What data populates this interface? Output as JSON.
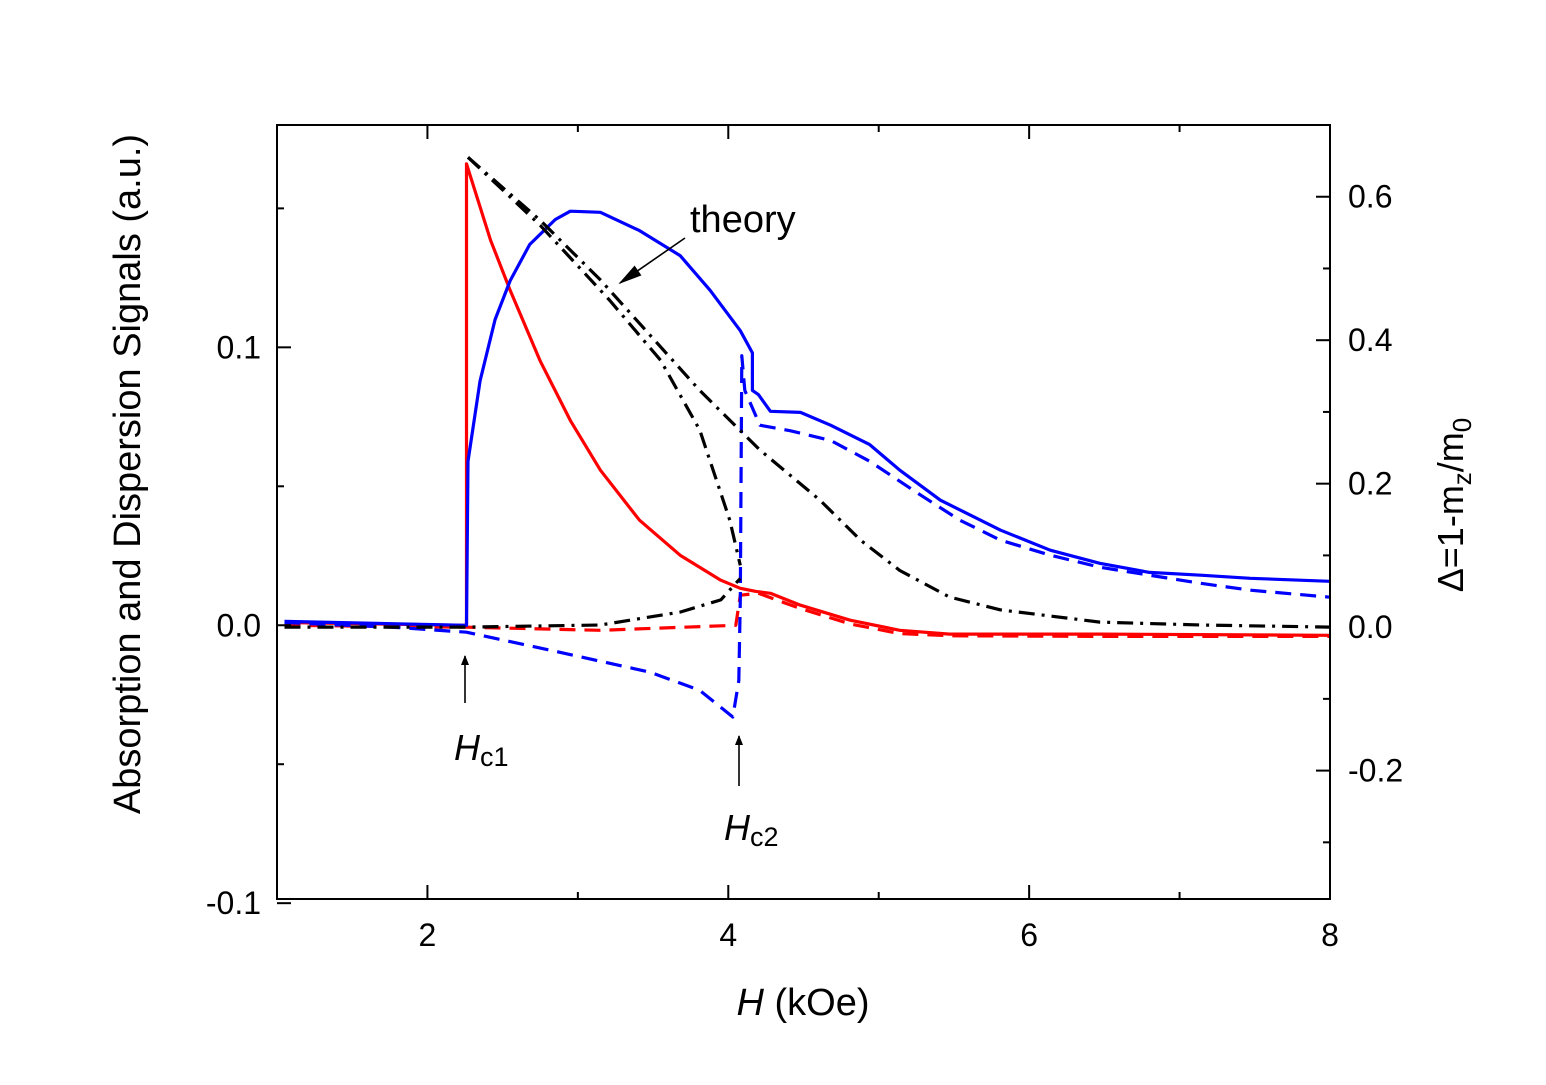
{
  "chart_data": {
    "type": "line",
    "xlabel": {
      "italic": "H",
      "rest": " (kOe)"
    },
    "ylabel_left": "Absorption and Dispersion Signals (a.u.)",
    "ylabel_right": {
      "main": "Δ=1-m",
      "sub1": "z",
      "mid": "/m",
      "sub2": "0"
    },
    "xlim": [
      1,
      8
    ],
    "ylim_left": [
      -0.0985,
      0.18
    ],
    "ylim_right": [
      -0.379,
      0.7
    ],
    "x_ticks": [
      2,
      4,
      6,
      8
    ],
    "x_tick_labels": [
      "2",
      "4",
      "6",
      "8"
    ],
    "x_minor_ticks": [
      1,
      3,
      5,
      7
    ],
    "y_left_ticks": [
      -0.1,
      0.0,
      0.1
    ],
    "y_left_tick_labels": [
      "-0.1",
      "0.0",
      "0.1"
    ],
    "y_left_minor_ticks": [
      -0.05,
      0.05,
      0.15
    ],
    "y_right_ticks": [
      -0.2,
      0.0,
      0.2,
      0.4,
      0.6
    ],
    "y_right_tick_labels": [
      "-0.2",
      "0.0",
      "0.2",
      "0.4",
      "0.6"
    ],
    "y_right_minor_ticks": [
      -0.3,
      -0.1,
      0.1,
      0.3,
      0.5
    ],
    "grid": false,
    "series": [
      {
        "name": "absorption-measured",
        "axis": "left",
        "color": "#ff0000",
        "style": "solid",
        "x": [
          1.05,
          2.26,
          2.26,
          2.42,
          2.55,
          2.75,
          2.95,
          3.15,
          3.41,
          3.68,
          3.95,
          4.08,
          4.18,
          4.28,
          4.48,
          4.81,
          5.14,
          5.47,
          6.47,
          8.0
        ],
        "y": [
          0.001,
          0.0,
          0.166,
          0.1385,
          0.1205,
          0.095,
          0.0737,
          0.0558,
          0.0378,
          0.0252,
          0.0162,
          0.0133,
          0.0122,
          0.0115,
          0.0072,
          0.0018,
          -0.0018,
          -0.0032,
          -0.0032,
          -0.0036
        ]
      },
      {
        "name": "absorption-dashed",
        "axis": "left",
        "color": "#ff0000",
        "style": "dashed",
        "x": [
          1.05,
          2.26,
          3.15,
          4.05,
          4.08,
          4.2,
          4.48,
          4.81,
          5.14,
          5.5,
          6.5,
          8.0
        ],
        "y": [
          0.0,
          -0.0007,
          -0.0018,
          0.0,
          0.0108,
          0.0115,
          0.006,
          0.0005,
          -0.003,
          -0.0038,
          -0.004,
          -0.004
        ]
      },
      {
        "name": "dispersion-measured",
        "axis": "left",
        "color": "#0000ff",
        "style": "solid",
        "x": [
          1.05,
          2.26,
          2.27,
          2.35,
          2.45,
          2.55,
          2.68,
          2.85,
          2.95,
          3.15,
          3.41,
          3.68,
          3.88,
          4.08,
          4.16,
          4.16,
          4.2,
          4.28,
          4.48,
          4.68,
          4.94,
          5.14,
          5.41,
          5.61,
          5.81,
          6.14,
          6.47,
          6.8,
          7.14,
          7.47,
          8.0
        ],
        "y": [
          0.0014,
          0.0,
          0.059,
          0.088,
          0.11,
          0.124,
          0.137,
          0.146,
          0.149,
          0.1486,
          0.142,
          0.133,
          0.1205,
          0.106,
          0.098,
          0.0845,
          0.083,
          0.077,
          0.0766,
          0.072,
          0.065,
          0.0558,
          0.045,
          0.0396,
          0.0342,
          0.027,
          0.0223,
          0.019,
          0.018,
          0.0169,
          0.0158
        ]
      },
      {
        "name": "dispersion-dashed",
        "axis": "left",
        "color": "#0000ff",
        "style": "dashed",
        "x": [
          1.05,
          1.8,
          2.26,
          2.82,
          3.48,
          3.81,
          4.03,
          4.07,
          4.08,
          4.09,
          4.11,
          4.21,
          4.41,
          4.68,
          4.94,
          5.28,
          5.54,
          5.81,
          6.14,
          6.47,
          6.8,
          7.14,
          7.47,
          8.0
        ],
        "y": [
          0.001,
          -0.0008,
          -0.0025,
          -0.009,
          -0.0169,
          -0.0234,
          -0.033,
          -0.02,
          0.009,
          0.097,
          0.0845,
          0.072,
          0.07,
          0.0665,
          0.059,
          0.0468,
          0.0378,
          0.0306,
          0.0252,
          0.0209,
          0.018,
          0.0151,
          0.0126,
          0.0101
        ]
      },
      {
        "name": "theory-hc2-branch-upper",
        "axis": "right",
        "color": "#000000",
        "style": "dashdot",
        "x": [
          2.27,
          2.75,
          3.21,
          3.55,
          3.81,
          4.01,
          4.08
        ],
        "y": [
          0.655,
          0.56,
          0.456,
          0.372,
          0.275,
          0.149,
          0.086
        ]
      },
      {
        "name": "theory-hc2-branch-lower",
        "axis": "right",
        "color": "#000000",
        "style": "dashdot",
        "x": [
          1.05,
          2.26,
          3.15,
          3.68,
          3.95,
          4.08
        ],
        "y": [
          0.0,
          0.0,
          0.003,
          0.021,
          0.038,
          0.068
        ]
      },
      {
        "name": "theory-continuous",
        "axis": "right",
        "color": "#000000",
        "style": "dashdot",
        "x": [
          2.27,
          2.75,
          3.15,
          3.81,
          4.21,
          4.61,
          4.88,
          5.14,
          5.47,
          5.81,
          6.47,
          7.14,
          8.0
        ],
        "y": [
          0.655,
          0.567,
          0.484,
          0.33,
          0.247,
          0.177,
          0.121,
          0.079,
          0.042,
          0.024,
          0.007,
          0.003,
          0.0
        ]
      }
    ],
    "annotations": {
      "theory": "theory",
      "hc1": {
        "italic": "H",
        "sub": "c1",
        "x": 2.25
      },
      "hc2": {
        "italic": "H",
        "sub": "c2",
        "x": 4.07
      }
    }
  }
}
